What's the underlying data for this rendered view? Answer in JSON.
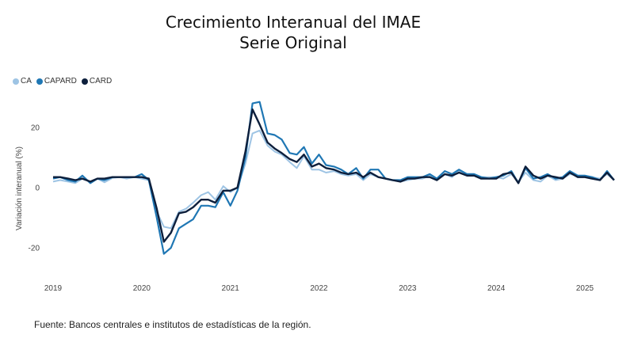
{
  "chart_data": {
    "type": "line",
    "title": "Crecimiento Interanual del IMAE",
    "subtitle": "Serie Original",
    "ylabel": "Variación interanual (%)",
    "xlabel": "",
    "ylim": [
      -30,
      32
    ],
    "yticks": [
      -20,
      0,
      20
    ],
    "xticks": [
      "2019",
      "2020",
      "2021",
      "2022",
      "2023",
      "2024",
      "2025"
    ],
    "xrange": [
      2019.0,
      2025.33
    ],
    "grid": false,
    "legend_position": "top-left",
    "source": "Fuente: Bancos centrales e institutos de estadísticas de la región.",
    "series": [
      {
        "name": "CA",
        "color": "#9ec4e4",
        "width": 2,
        "points": [
          [
            2019.0,
            2.0
          ],
          [
            2019.08,
            2.5
          ],
          [
            2019.17,
            2.0
          ],
          [
            2019.25,
            1.5
          ],
          [
            2019.33,
            3.0
          ],
          [
            2019.42,
            2.0
          ],
          [
            2019.5,
            3.0
          ],
          [
            2019.58,
            1.8
          ],
          [
            2019.67,
            3.2
          ],
          [
            2019.75,
            3.5
          ],
          [
            2019.83,
            3.0
          ],
          [
            2019.92,
            3.5
          ],
          [
            2020.0,
            3.0
          ],
          [
            2020.08,
            2.5
          ],
          [
            2020.17,
            -8.0
          ],
          [
            2020.25,
            -13.0
          ],
          [
            2020.33,
            -13.5
          ],
          [
            2020.42,
            -8.0
          ],
          [
            2020.5,
            -7.0
          ],
          [
            2020.58,
            -5.0
          ],
          [
            2020.67,
            -2.5
          ],
          [
            2020.75,
            -1.5
          ],
          [
            2020.83,
            -4.0
          ],
          [
            2020.92,
            0.5
          ],
          [
            2021.0,
            -1.5
          ],
          [
            2021.08,
            0.0
          ],
          [
            2021.17,
            8.0
          ],
          [
            2021.25,
            18.0
          ],
          [
            2021.33,
            19.0
          ],
          [
            2021.42,
            14.0
          ],
          [
            2021.5,
            12.0
          ],
          [
            2021.58,
            11.0
          ],
          [
            2021.67,
            8.5
          ],
          [
            2021.75,
            6.5
          ],
          [
            2021.83,
            10.5
          ],
          [
            2021.92,
            6.0
          ],
          [
            2022.0,
            6.0
          ],
          [
            2022.08,
            5.0
          ],
          [
            2022.17,
            5.5
          ],
          [
            2022.25,
            4.5
          ],
          [
            2022.33,
            4.0
          ],
          [
            2022.42,
            4.5
          ],
          [
            2022.5,
            2.5
          ],
          [
            2022.58,
            4.5
          ],
          [
            2022.67,
            3.5
          ],
          [
            2022.75,
            3.0
          ],
          [
            2022.83,
            2.5
          ],
          [
            2022.92,
            2.0
          ],
          [
            2023.0,
            2.5
          ],
          [
            2023.08,
            3.0
          ],
          [
            2023.17,
            3.0
          ],
          [
            2023.25,
            4.0
          ],
          [
            2023.33,
            3.0
          ],
          [
            2023.42,
            4.5
          ],
          [
            2023.5,
            3.5
          ],
          [
            2023.58,
            5.5
          ],
          [
            2023.67,
            4.5
          ],
          [
            2023.75,
            4.0
          ],
          [
            2023.83,
            3.5
          ],
          [
            2023.92,
            3.5
          ],
          [
            2024.0,
            3.5
          ],
          [
            2024.08,
            3.0
          ],
          [
            2024.17,
            4.5
          ],
          [
            2024.25,
            2.0
          ],
          [
            2024.33,
            5.0
          ],
          [
            2024.42,
            2.5
          ],
          [
            2024.5,
            2.0
          ],
          [
            2024.58,
            4.0
          ],
          [
            2024.67,
            2.5
          ],
          [
            2024.75,
            3.0
          ],
          [
            2024.83,
            4.5
          ],
          [
            2024.92,
            4.0
          ],
          [
            2025.0,
            4.0
          ],
          [
            2025.08,
            3.5
          ],
          [
            2025.17,
            3.0
          ],
          [
            2025.25,
            4.5
          ],
          [
            2025.33,
            2.5
          ]
        ]
      },
      {
        "name": "CAPARD",
        "color": "#1f77b4",
        "width": 2.2,
        "points": [
          [
            2019.0,
            3.0
          ],
          [
            2019.08,
            3.5
          ],
          [
            2019.17,
            2.5
          ],
          [
            2019.25,
            2.0
          ],
          [
            2019.33,
            4.0
          ],
          [
            2019.42,
            1.5
          ],
          [
            2019.5,
            3.0
          ],
          [
            2019.58,
            2.5
          ],
          [
            2019.67,
            3.5
          ],
          [
            2019.75,
            3.5
          ],
          [
            2019.83,
            3.5
          ],
          [
            2019.92,
            3.5
          ],
          [
            2020.0,
            4.5
          ],
          [
            2020.08,
            2.5
          ],
          [
            2020.17,
            -10.0
          ],
          [
            2020.25,
            -22.0
          ],
          [
            2020.33,
            -20.0
          ],
          [
            2020.42,
            -13.5
          ],
          [
            2020.5,
            -12.0
          ],
          [
            2020.58,
            -10.5
          ],
          [
            2020.67,
            -6.0
          ],
          [
            2020.75,
            -6.0
          ],
          [
            2020.83,
            -6.5
          ],
          [
            2020.92,
            -1.5
          ],
          [
            2021.0,
            -6.0
          ],
          [
            2021.08,
            -1.0
          ],
          [
            2021.17,
            10.0
          ],
          [
            2021.25,
            28.0
          ],
          [
            2021.33,
            28.5
          ],
          [
            2021.42,
            18.0
          ],
          [
            2021.5,
            17.5
          ],
          [
            2021.58,
            16.0
          ],
          [
            2021.67,
            11.5
          ],
          [
            2021.75,
            11.0
          ],
          [
            2021.83,
            13.5
          ],
          [
            2021.92,
            8.0
          ],
          [
            2022.0,
            11.0
          ],
          [
            2022.08,
            7.5
          ],
          [
            2022.17,
            7.0
          ],
          [
            2022.25,
            6.0
          ],
          [
            2022.33,
            4.5
          ],
          [
            2022.42,
            6.5
          ],
          [
            2022.5,
            3.0
          ],
          [
            2022.58,
            6.0
          ],
          [
            2022.67,
            6.0
          ],
          [
            2022.75,
            3.0
          ],
          [
            2022.83,
            2.5
          ],
          [
            2022.92,
            2.5
          ],
          [
            2023.0,
            3.5
          ],
          [
            2023.08,
            3.5
          ],
          [
            2023.17,
            3.5
          ],
          [
            2023.25,
            4.5
          ],
          [
            2023.33,
            3.0
          ],
          [
            2023.42,
            5.5
          ],
          [
            2023.5,
            4.5
          ],
          [
            2023.58,
            6.0
          ],
          [
            2023.67,
            4.5
          ],
          [
            2023.75,
            4.5
          ],
          [
            2023.83,
            3.5
          ],
          [
            2023.92,
            3.0
          ],
          [
            2024.0,
            3.5
          ],
          [
            2024.08,
            4.0
          ],
          [
            2024.17,
            5.5
          ],
          [
            2024.25,
            1.5
          ],
          [
            2024.33,
            6.5
          ],
          [
            2024.42,
            3.0
          ],
          [
            2024.5,
            3.5
          ],
          [
            2024.58,
            4.5
          ],
          [
            2024.67,
            3.0
          ],
          [
            2024.75,
            3.5
          ],
          [
            2024.83,
            5.5
          ],
          [
            2024.92,
            4.0
          ],
          [
            2025.0,
            4.0
          ],
          [
            2025.08,
            3.5
          ],
          [
            2025.17,
            2.5
          ],
          [
            2025.25,
            5.5
          ],
          [
            2025.33,
            2.5
          ]
        ]
      },
      {
        "name": "CARD",
        "color": "#0d1f3c",
        "width": 2.4,
        "points": [
          [
            2019.0,
            3.5
          ],
          [
            2019.08,
            3.5
          ],
          [
            2019.17,
            3.0
          ],
          [
            2019.25,
            2.5
          ],
          [
            2019.33,
            3.0
          ],
          [
            2019.42,
            2.0
          ],
          [
            2019.5,
            3.0
          ],
          [
            2019.58,
            3.0
          ],
          [
            2019.67,
            3.5
          ],
          [
            2019.75,
            3.5
          ],
          [
            2019.83,
            3.5
          ],
          [
            2019.92,
            3.5
          ],
          [
            2020.0,
            3.5
          ],
          [
            2020.08,
            3.0
          ],
          [
            2020.17,
            -7.0
          ],
          [
            2020.25,
            -18.0
          ],
          [
            2020.33,
            -15.0
          ],
          [
            2020.42,
            -8.5
          ],
          [
            2020.5,
            -8.0
          ],
          [
            2020.58,
            -6.5
          ],
          [
            2020.67,
            -4.0
          ],
          [
            2020.75,
            -4.0
          ],
          [
            2020.83,
            -5.0
          ],
          [
            2020.92,
            -1.0
          ],
          [
            2021.0,
            -1.0
          ],
          [
            2021.08,
            0.0
          ],
          [
            2021.17,
            12.0
          ],
          [
            2021.25,
            26.0
          ],
          [
            2021.33,
            21.0
          ],
          [
            2021.42,
            15.0
          ],
          [
            2021.5,
            13.0
          ],
          [
            2021.58,
            11.5
          ],
          [
            2021.67,
            9.5
          ],
          [
            2021.75,
            8.5
          ],
          [
            2021.83,
            11.0
          ],
          [
            2021.92,
            7.0
          ],
          [
            2022.0,
            8.0
          ],
          [
            2022.08,
            6.5
          ],
          [
            2022.17,
            6.0
          ],
          [
            2022.25,
            5.0
          ],
          [
            2022.33,
            4.5
          ],
          [
            2022.42,
            5.0
          ],
          [
            2022.5,
            3.5
          ],
          [
            2022.58,
            5.0
          ],
          [
            2022.67,
            3.5
          ],
          [
            2022.75,
            3.0
          ],
          [
            2022.83,
            2.5
          ],
          [
            2022.92,
            2.0
          ],
          [
            2023.0,
            3.0
          ],
          [
            2023.08,
            3.0
          ],
          [
            2023.17,
            3.5
          ],
          [
            2023.25,
            3.5
          ],
          [
            2023.33,
            2.5
          ],
          [
            2023.42,
            4.5
          ],
          [
            2023.5,
            4.0
          ],
          [
            2023.58,
            5.0
          ],
          [
            2023.67,
            4.0
          ],
          [
            2023.75,
            4.0
          ],
          [
            2023.83,
            3.0
          ],
          [
            2023.92,
            3.0
          ],
          [
            2024.0,
            3.0
          ],
          [
            2024.08,
            4.5
          ],
          [
            2024.17,
            5.0
          ],
          [
            2024.25,
            1.5
          ],
          [
            2024.33,
            7.0
          ],
          [
            2024.42,
            4.0
          ],
          [
            2024.5,
            3.0
          ],
          [
            2024.58,
            4.0
          ],
          [
            2024.67,
            3.5
          ],
          [
            2024.75,
            3.0
          ],
          [
            2024.83,
            5.0
          ],
          [
            2024.92,
            3.5
          ],
          [
            2025.0,
            3.5
          ],
          [
            2025.08,
            3.0
          ],
          [
            2025.17,
            2.5
          ],
          [
            2025.25,
            5.0
          ],
          [
            2025.33,
            2.5
          ]
        ]
      }
    ]
  }
}
